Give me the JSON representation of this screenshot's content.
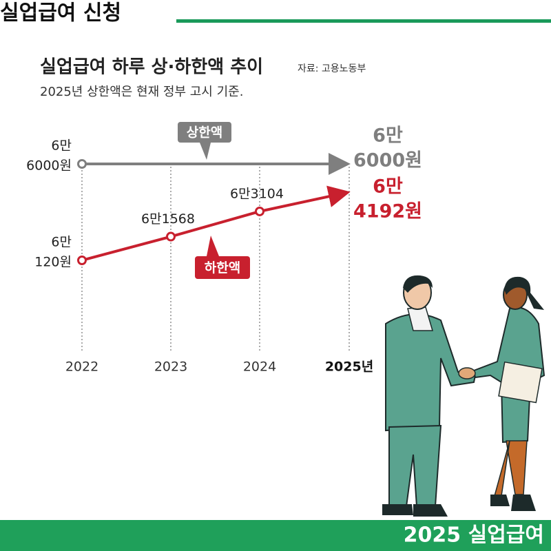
{
  "header": {
    "title": "실업급여 신청"
  },
  "chart_data": {
    "type": "line",
    "title": "실업급여 하루 상·하한액 추이",
    "source": "자료: 고용노동부",
    "subtitle": "2025년 상한액은 현재 정부 고시 기준.",
    "categories": [
      "2022",
      "2023",
      "2024",
      "2025년"
    ],
    "series": [
      {
        "name": "상한액",
        "color": "#7f7f7f",
        "values": [
          66000,
          66000,
          66000,
          66000
        ],
        "value_labels": [
          [
            "6만",
            "6000원"
          ],
          null,
          null,
          [
            "6만",
            "6000원"
          ]
        ]
      },
      {
        "name": "하한액",
        "color": "#c8202e",
        "values": [
          60120,
          61568,
          63104,
          64192
        ],
        "value_labels": [
          [
            "6만",
            "120원"
          ],
          [
            "6만1568"
          ],
          [
            "6만3104"
          ],
          [
            "6만",
            "4192원"
          ]
        ]
      }
    ]
  },
  "footer": {
    "text": "2025 실업급여"
  }
}
